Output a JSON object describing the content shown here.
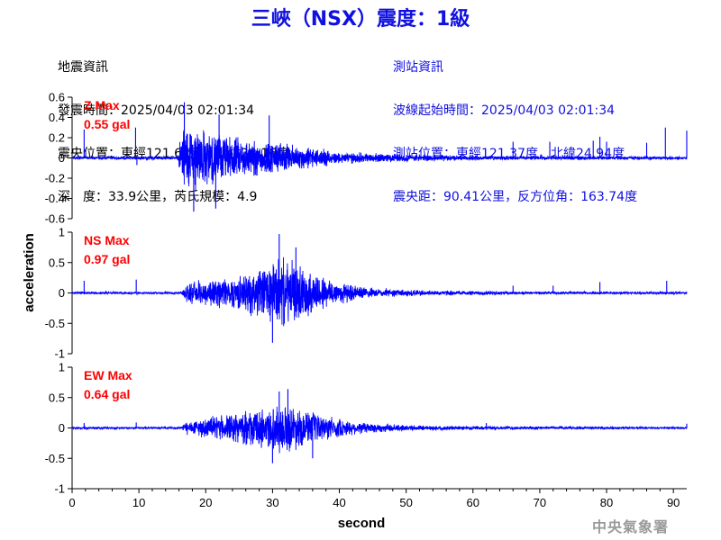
{
  "title": "三峽（NSX）震度：1級",
  "earthquake_info": {
    "heading": "地震資訊",
    "origin_time": "發震時間：2025/04/03 02:01:34",
    "epicenter": "震央位置：東經121.62度，北緯24.16度",
    "depth_magnitude": "深　度：33.9公里，芮氏規模：4.9"
  },
  "station_info": {
    "heading": "測站資訊",
    "wave_start": "波線起始時間：2025/04/03 02:01:34",
    "location": "測站位置：東經121.37度，北緯24.94度",
    "distance_azimuth": "震央距：90.41公里，反方位角：163.74度"
  },
  "footer": "中央氣象署",
  "colors": {
    "trace": "#0000ff",
    "title": "#1010e0",
    "max_label": "#ff0000",
    "footer": "#9a9a9a"
  },
  "chart_data": {
    "type": "line",
    "xlabel": "second",
    "ylabel": "acceleration",
    "xlim": [
      0,
      92
    ],
    "x_ticks": [
      0,
      10,
      20,
      30,
      40,
      50,
      60,
      70,
      80,
      90
    ],
    "x_tick_labels": [
      "0",
      "10",
      "20",
      "30",
      "40",
      "50",
      "60",
      "70",
      "80",
      "90"
    ],
    "grid": false,
    "panels": [
      {
        "component": "Z",
        "max_label": "Z Max",
        "max_value": "0.55 gal",
        "ylim": [
          -0.6,
          0.6
        ],
        "y_ticks": [
          -0.6,
          -0.4,
          -0.2,
          0,
          0.2,
          0.4,
          0.6
        ],
        "y_tick_labels": [
          "-0.6",
          "-0.4",
          "-0.2",
          "0",
          "0.2",
          "0.4",
          "0.6"
        ],
        "noise": 0.01,
        "envelope": [
          [
            0,
            0.012
          ],
          [
            15.8,
            0.012
          ],
          [
            16.4,
            0.35
          ],
          [
            17,
            0.4
          ],
          [
            20,
            0.3
          ],
          [
            25,
            0.22
          ],
          [
            30,
            0.18
          ],
          [
            35,
            0.12
          ],
          [
            40,
            0.06
          ],
          [
            50,
            0.035
          ],
          [
            60,
            0.02
          ],
          [
            70,
            0.015
          ],
          [
            92,
            0.012
          ]
        ],
        "spikes": [
          [
            1.8,
            0.28
          ],
          [
            9.5,
            0.3
          ],
          [
            9.7,
            -0.07
          ],
          [
            16.8,
            0.55
          ],
          [
            18.2,
            -0.53
          ],
          [
            21.5,
            -0.5
          ],
          [
            22,
            0.43
          ],
          [
            29.5,
            0.42
          ],
          [
            66,
            0.16
          ],
          [
            71.5,
            0.16
          ],
          [
            78,
            0.17
          ],
          [
            79,
            0.21
          ],
          [
            80,
            0.16
          ],
          [
            86,
            0.15
          ],
          [
            88.8,
            0.3
          ],
          [
            92,
            0.27
          ]
        ]
      },
      {
        "component": "NS",
        "max_label": "NS Max",
        "max_value": "0.97 gal",
        "ylim": [
          -1,
          1
        ],
        "y_ticks": [
          -1,
          -0.5,
          0,
          0.5,
          1
        ],
        "y_tick_labels": [
          "-1",
          "-0.5",
          "0",
          "0.5",
          "1"
        ],
        "noise": 0.012,
        "envelope": [
          [
            0,
            0.015
          ],
          [
            16.3,
            0.015
          ],
          [
            17,
            0.15
          ],
          [
            20,
            0.25
          ],
          [
            25,
            0.3
          ],
          [
            28,
            0.45
          ],
          [
            31,
            0.65
          ],
          [
            34,
            0.5
          ],
          [
            37,
            0.35
          ],
          [
            40,
            0.2
          ],
          [
            45,
            0.08
          ],
          [
            55,
            0.04
          ],
          [
            70,
            0.02
          ],
          [
            92,
            0.015
          ]
        ],
        "spikes": [
          [
            1.8,
            0.2
          ],
          [
            9.6,
            0.22
          ],
          [
            30,
            -0.82
          ],
          [
            31,
            0.97
          ],
          [
            33.5,
            0.75
          ],
          [
            66,
            0.12
          ],
          [
            72,
            0.12
          ],
          [
            79,
            0.18
          ],
          [
            89,
            0.2
          ]
        ]
      },
      {
        "component": "EW",
        "max_label": "EW Max",
        "max_value": "0.64 gal",
        "ylim": [
          -1,
          1
        ],
        "y_ticks": [
          -1,
          -0.5,
          0,
          0.5,
          1
        ],
        "y_tick_labels": [
          "-1",
          "-0.5",
          "0",
          "0.5",
          "1"
        ],
        "noise": 0.01,
        "envelope": [
          [
            0,
            0.012
          ],
          [
            16.3,
            0.012
          ],
          [
            17,
            0.12
          ],
          [
            20,
            0.18
          ],
          [
            25,
            0.28
          ],
          [
            30,
            0.4
          ],
          [
            32,
            0.45
          ],
          [
            35,
            0.32
          ],
          [
            38,
            0.22
          ],
          [
            42,
            0.12
          ],
          [
            50,
            0.05
          ],
          [
            60,
            0.03
          ],
          [
            92,
            0.012
          ]
        ],
        "spikes": [
          [
            1.8,
            0.08
          ],
          [
            9.6,
            0.09
          ],
          [
            30,
            -0.58
          ],
          [
            31,
            0.6
          ],
          [
            32.3,
            0.64
          ],
          [
            36,
            -0.5
          ],
          [
            62,
            0.08
          ],
          [
            92,
            0.07
          ]
        ]
      }
    ]
  }
}
